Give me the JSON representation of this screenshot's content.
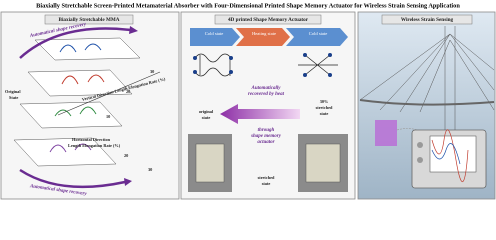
{
  "header": {
    "title": "Biaxially Stretchable Screen-Printed Metamaterial Absorber with Four-Dimensional Printed Shape Memory Actuator for Wireless Strain Sensing Application"
  },
  "panel_mma": {
    "heading": "Biaxially Stretchable MMA",
    "recovery_top": "Automatical shape recovery",
    "original": [
      "Original",
      "State"
    ],
    "vertical_axis": [
      "Vertical Direction Length Elongation Rate (%)"
    ],
    "horizontal_axis": [
      "Horizontal Direction",
      "Length Elongation Rate (%)"
    ],
    "recovery_bottom": "Automatical shape recovery",
    "vertical_ticks": [
      "10",
      "20",
      "30"
    ],
    "horizontal_ticks": [
      "20",
      "30"
    ]
  },
  "panel_actuator": {
    "heading": "4D printed Shape Memory Actuator",
    "states": [
      "Cold state",
      "Heating state",
      "Cold state"
    ],
    "recovered": [
      "Automatically",
      "recovered by heat"
    ],
    "stretched": [
      "30%",
      "stretched",
      "state"
    ],
    "original": [
      "original",
      "state"
    ],
    "through": [
      "through",
      "shape memory",
      "actuator"
    ],
    "stretched_state": [
      "stretched",
      "state"
    ]
  },
  "panel_sensing": {
    "heading": "Wireless Strain Sensing"
  }
}
